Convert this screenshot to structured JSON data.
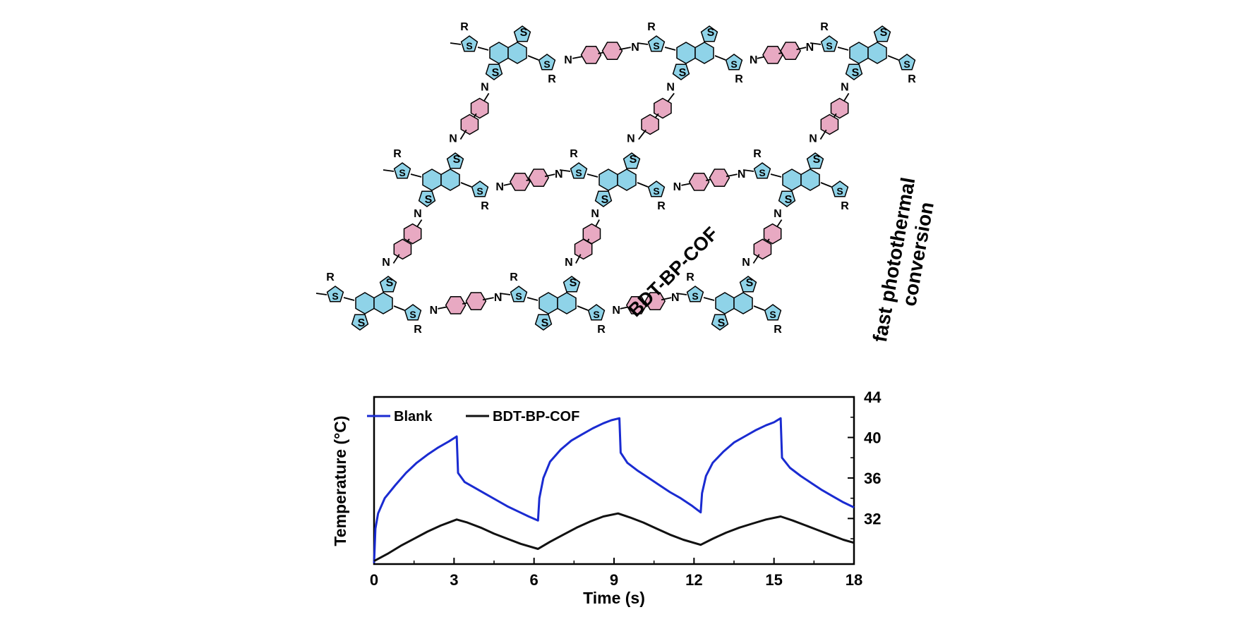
{
  "scheme": {
    "framework_label": "BDT-BP-COF",
    "side_caption_line1": "fast photothermal",
    "side_caption_line2": "conversion",
    "substituent": "R",
    "sulfur": "S",
    "nitrogen": "N",
    "colors": {
      "thiophene_fill": "#8fd3e8",
      "benzene_fill": "#e8a9c2",
      "bond": "#000000"
    }
  },
  "chart_data": {
    "type": "line",
    "xlabel": "Time (s)",
    "ylabel": "Temperature (°C)",
    "xlim": [
      0,
      18
    ],
    "ylim": [
      27.5,
      44
    ],
    "xticks": [
      0,
      3,
      6,
      9,
      12,
      15,
      18
    ],
    "yticks": [
      32,
      36,
      40,
      44
    ],
    "y_axis_side": "right",
    "legend_position": "top-left",
    "grid": false,
    "series": [
      {
        "name": "Blank",
        "color": "#1a2bd1",
        "x": [
          0.0,
          0.05,
          0.15,
          0.4,
          0.8,
          1.2,
          1.6,
          2.0,
          2.4,
          2.8,
          3.1,
          3.15,
          3.4,
          3.8,
          4.2,
          4.6,
          5.0,
          5.4,
          5.8,
          6.15,
          6.2,
          6.35,
          6.6,
          7.0,
          7.4,
          7.8,
          8.2,
          8.6,
          8.9,
          9.2,
          9.25,
          9.5,
          9.9,
          10.3,
          10.7,
          11.1,
          11.5,
          11.9,
          12.25,
          12.3,
          12.45,
          12.7,
          13.1,
          13.5,
          13.9,
          14.3,
          14.7,
          15.0,
          15.25,
          15.3,
          15.6,
          16.0,
          16.4,
          16.8,
          17.2,
          17.6,
          18.0
        ],
        "values": [
          27.6,
          31.0,
          32.5,
          34.0,
          35.3,
          36.5,
          37.5,
          38.3,
          39.0,
          39.6,
          40.1,
          36.5,
          35.6,
          35.0,
          34.4,
          33.8,
          33.2,
          32.7,
          32.2,
          31.8,
          34.0,
          36.0,
          37.6,
          38.8,
          39.7,
          40.3,
          40.9,
          41.4,
          41.7,
          41.9,
          38.5,
          37.5,
          36.7,
          36.0,
          35.3,
          34.6,
          34.0,
          33.3,
          32.6,
          34.5,
          36.2,
          37.5,
          38.6,
          39.5,
          40.1,
          40.7,
          41.2,
          41.5,
          41.9,
          38.0,
          37.0,
          36.2,
          35.5,
          34.8,
          34.2,
          33.6,
          33.1
        ]
      },
      {
        "name": "BDT-BP-COF",
        "color": "#111111",
        "x": [
          0.0,
          0.5,
          1.0,
          1.5,
          2.0,
          2.5,
          3.1,
          3.5,
          4.0,
          4.5,
          5.0,
          5.5,
          6.15,
          6.6,
          7.1,
          7.6,
          8.1,
          8.6,
          9.15,
          9.6,
          10.1,
          10.6,
          11.1,
          11.6,
          12.25,
          12.7,
          13.2,
          13.7,
          14.2,
          14.7,
          15.25,
          15.7,
          16.2,
          16.7,
          17.2,
          17.6,
          18.0
        ],
        "values": [
          27.8,
          28.5,
          29.3,
          30.0,
          30.7,
          31.3,
          31.9,
          31.6,
          31.1,
          30.5,
          30.0,
          29.5,
          29.0,
          29.7,
          30.4,
          31.1,
          31.7,
          32.2,
          32.5,
          32.1,
          31.6,
          31.0,
          30.4,
          29.9,
          29.4,
          30.0,
          30.6,
          31.1,
          31.5,
          31.9,
          32.2,
          31.8,
          31.3,
          30.8,
          30.3,
          29.9,
          29.6
        ]
      }
    ]
  }
}
